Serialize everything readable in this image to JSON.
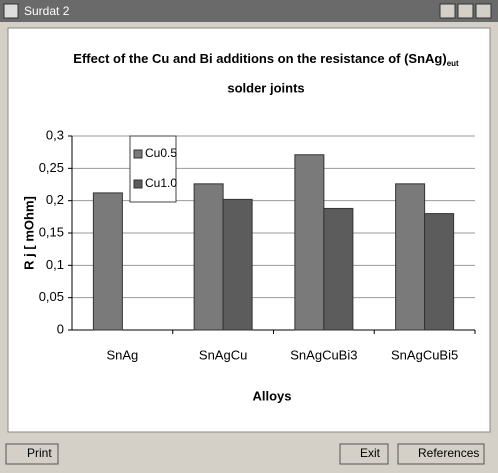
{
  "window": {
    "title": "Surdat 2"
  },
  "buttons": [
    "Print",
    "Exit",
    "References"
  ],
  "chart_data": {
    "type": "bar",
    "title": {
      "text": "Effect of the Cu and Bi additions on the resistance of (SnAg)",
      "subscript": "eut",
      "line2": "solder joints"
    },
    "xlabel": "Alloys",
    "ylabel": "R j [ mOhm]",
    "categories": [
      "SnAg",
      "SnAgCu",
      "SnAgCuBi3",
      "SnAgCuBi5"
    ],
    "series": [
      {
        "name": "Cu0.5",
        "color": "#7a7a7a",
        "values": [
          0.212,
          0.226,
          0.271,
          0.226
        ]
      },
      {
        "name": "Cu1.0",
        "color": "#5c5c5c",
        "values": [
          null,
          0.202,
          0.188,
          0.18
        ]
      }
    ],
    "ylim": [
      0,
      0.3
    ],
    "yticks": [
      {
        "value": 0,
        "label": "0"
      },
      {
        "value": 0.05,
        "label": "0,05"
      },
      {
        "value": 0.1,
        "label": "0,1"
      },
      {
        "value": 0.15,
        "label": "0,15"
      },
      {
        "value": 0.2,
        "label": "0,2"
      },
      {
        "value": 0.25,
        "label": "0,25"
      },
      {
        "value": 0.3,
        "label": "0,3"
      }
    ],
    "grid": true
  }
}
